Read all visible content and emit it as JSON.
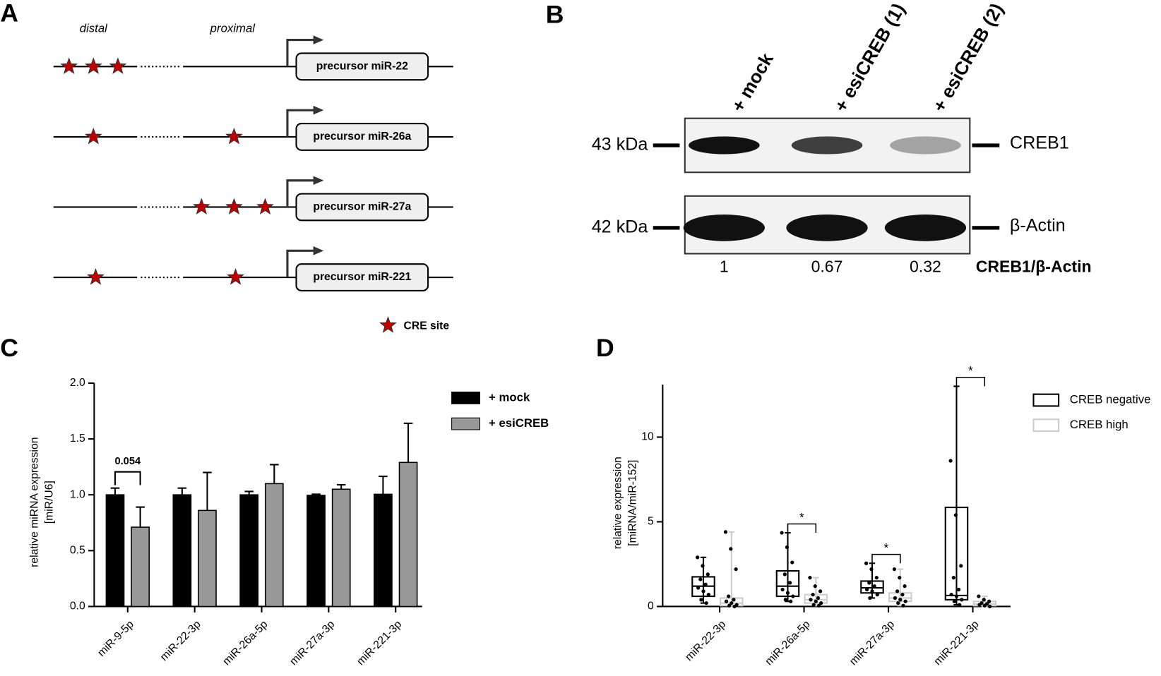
{
  "panels": {
    "A": {
      "label": "A",
      "distal": "distal",
      "proximal": "proximal",
      "genes": [
        "precursor miR-22",
        "precursor miR-26a",
        "precursor miR-27a",
        "precursor miR-221"
      ],
      "legend": "CRE site"
    },
    "B": {
      "label": "B",
      "lanes": [
        "+ mock",
        "+ esiCREB (1)",
        "+ esiCREB (2)"
      ],
      "blots": [
        {
          "size": "43 kDa",
          "protein": "CREB1"
        },
        {
          "size": "42 kDa",
          "protein": "β-Actin"
        }
      ],
      "ratios": [
        1,
        0.67,
        0.32
      ],
      "ratio_label": "CREB1/β-Actin"
    },
    "C": {
      "label": "C"
    },
    "D": {
      "label": "D"
    }
  },
  "chart_data": [
    {
      "type": "bar",
      "y_label": [
        "relative miRNA expression",
        "[miR/U6]"
      ],
      "categories": [
        "miR-9-5p",
        "miR-22-3p",
        "miR-26a-5p",
        "miR-27a-3p",
        "miR-221-3p"
      ],
      "series": [
        {
          "name": "+ mock",
          "color": "#000000",
          "values": [
            1.0,
            1.0,
            1.0,
            0.995,
            1.005
          ],
          "errors": [
            0.06,
            0.06,
            0.03,
            0.01,
            0.16
          ]
        },
        {
          "name": "+ esiCREB",
          "color": "#999999",
          "values": [
            0.71,
            0.86,
            1.1,
            1.05,
            1.29
          ],
          "errors": [
            0.18,
            0.34,
            0.17,
            0.04,
            0.35
          ]
        }
      ],
      "ylim": [
        0,
        2.0
      ],
      "yticks": [
        {
          "value": 0,
          "label": "0.0"
        },
        {
          "value": 0.5,
          "label": "0.5"
        },
        {
          "value": 1,
          "label": "1.0"
        },
        {
          "value": 1.5,
          "label": "1.5"
        },
        {
          "value": 2,
          "label": "2.0"
        }
      ],
      "annotations": [
        {
          "text": "0.054",
          "category": 0
        }
      ]
    },
    {
      "type": "box",
      "y_label": [
        "relative expression",
        "[miRNA/miR-152]"
      ],
      "categories": [
        "miR-22-3p",
        "miR-26a-5p",
        "miR-27a-3p",
        "miR-221-3p"
      ],
      "series": [
        {
          "name": "CREB negative",
          "color": "#000000",
          "min": [
            0.2,
            0.3,
            0.5,
            0.1
          ],
          "q1": [
            0.6,
            0.6,
            0.8,
            0.4
          ],
          "median": [
            1.2,
            1.2,
            1.1,
            0.65
          ],
          "q3": [
            1.75,
            2.1,
            1.5,
            5.85
          ],
          "max": [
            2.9,
            4.35,
            2.55,
            13.0
          ],
          "points": [
            [
              2.9,
              2.4,
              1.9,
              1.6,
              1.3,
              1.1,
              0.9,
              0.7,
              0.4,
              0.2
            ],
            [
              4.35,
              3.5,
              2.6,
              1.9,
              1.4,
              1.0,
              0.8,
              0.6,
              0.4,
              0.3
            ],
            [
              2.55,
              2.2,
              1.7,
              1.4,
              1.2,
              1.0,
              0.9,
              0.7,
              0.5
            ],
            [
              8.6,
              5.4,
              2.4,
              1.7,
              1.0,
              0.7,
              0.6,
              0.4,
              0.3,
              0.1
            ]
          ]
        },
        {
          "name": "CREB high",
          "color": "#cccccc",
          "min": [
            0,
            0.05,
            0.05,
            0
          ],
          "q1": [
            0.05,
            0.2,
            0.3,
            0.05
          ],
          "median": [
            0.2,
            0.4,
            0.5,
            0.15
          ],
          "q3": [
            0.5,
            0.7,
            0.8,
            0.3
          ],
          "max": [
            4.4,
            1.7,
            2.2,
            0.6
          ],
          "points": [
            [
              4.4,
              3.4,
              2.2,
              0.6,
              0.4,
              0.3,
              0.2,
              0.1,
              0.05,
              0
            ],
            [
              1.7,
              1.2,
              0.9,
              0.7,
              0.5,
              0.4,
              0.3,
              0.2,
              0.1,
              0.05
            ],
            [
              2.2,
              1.7,
              1.2,
              0.9,
              0.7,
              0.5,
              0.4,
              0.3,
              0.2,
              0.05
            ],
            [
              0.6,
              0.4,
              0.3,
              0.2,
              0.15,
              0.1,
              0.05,
              0
            ]
          ]
        }
      ],
      "ylim": [
        0,
        13.1
      ],
      "yticks": [
        0,
        5,
        10
      ],
      "annotations": [
        {
          "text": "*",
          "category": 1
        },
        {
          "text": "*",
          "category": 2
        },
        {
          "text": "*",
          "category": 3
        }
      ]
    }
  ]
}
